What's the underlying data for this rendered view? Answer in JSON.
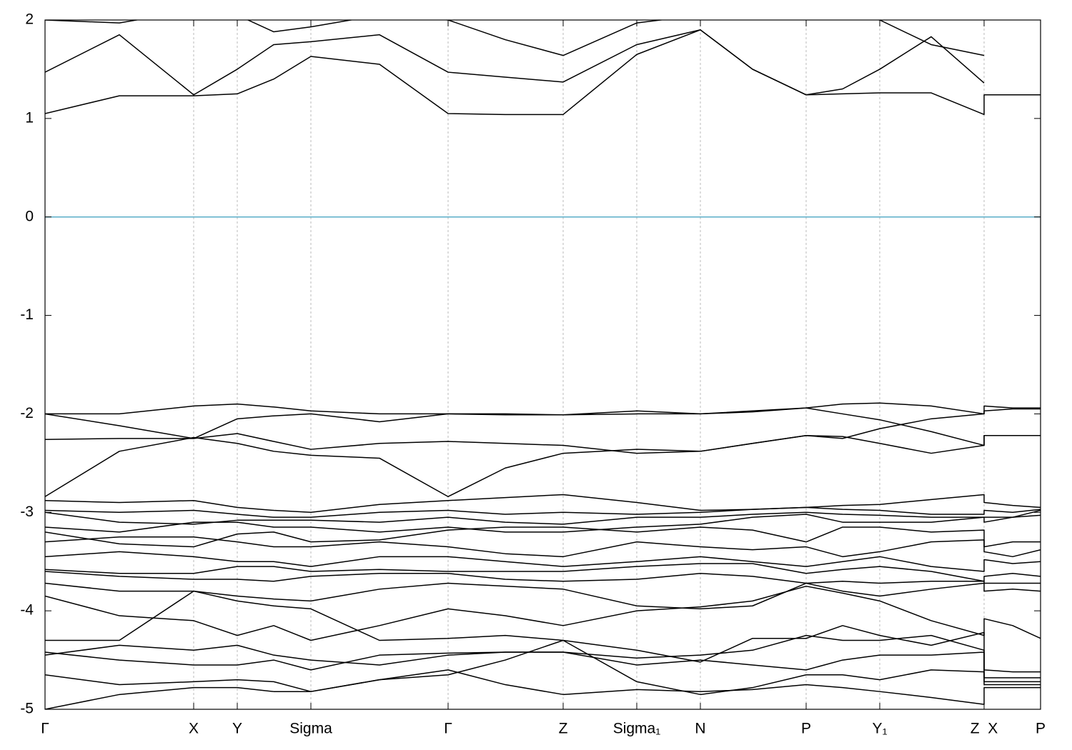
{
  "chart_data": {
    "type": "line",
    "x": [
      0,
      0.52,
      1.04,
      1.345,
      1.6,
      1.86,
      2.34,
      2.82,
      3.22,
      3.625,
      4.14,
      4.585,
      4.95,
      5.325,
      5.58,
      5.84,
      6.2,
      6.57,
      6.57,
      6.77,
      6.965
    ],
    "xlim": [
      0,
      6.965
    ],
    "xticks": [
      {
        "value": 0,
        "label": "Γ"
      },
      {
        "value": 1.04,
        "label": "X"
      },
      {
        "value": 1.345,
        "label": "Y"
      },
      {
        "value": 1.86,
        "label": "Sigma"
      },
      {
        "value": 2.82,
        "label": "Γ"
      },
      {
        "value": 3.625,
        "label": "Z"
      },
      {
        "value": 4.14,
        "label": "Sigma₁"
      },
      {
        "value": 4.585,
        "label": "N"
      },
      {
        "value": 5.325,
        "label": "P"
      },
      {
        "value": 5.84,
        "label": "Y₁"
      },
      {
        "value": 6.57,
        "label": "Z  X"
      },
      {
        "value": 6.965,
        "label": "P"
      }
    ],
    "ylim": [
      -5,
      2
    ],
    "yticks": [
      -5,
      -4,
      -3,
      -2,
      -1,
      0,
      1,
      2
    ],
    "grid": true,
    "color": "#000000",
    "hlines": [
      {
        "value": 0,
        "color": "#5aaec8"
      }
    ],
    "series": [
      {
        "values": [
          1.05,
          1.23,
          1.23,
          1.25,
          1.4,
          1.63,
          1.55,
          1.05,
          1.04,
          1.04,
          1.65,
          1.9,
          1.5,
          1.24,
          1.25,
          1.26,
          1.26,
          1.04,
          1.24,
          1.24,
          1.24
        ]
      },
      {
        "values": [
          1.47,
          1.85,
          1.24,
          1.5,
          1.75,
          1.78,
          1.85,
          1.47,
          1.42,
          1.37,
          1.75,
          1.9,
          1.5,
          1.24,
          1.3,
          1.5,
          1.83,
          1.36,
          null,
          null,
          null
        ]
      },
      {
        "values": [
          2.0,
          1.97,
          2.1,
          2.05,
          1.88,
          1.93,
          2.05,
          2.0,
          1.8,
          1.64,
          1.97,
          2.05,
          2.1,
          2.1,
          2.05,
          2.0,
          1.75,
          1.64,
          null,
          null,
          null
        ]
      },
      {
        "values": [
          -2.0,
          -2.0,
          -1.92,
          -1.9,
          -1.93,
          -1.97,
          -2.0,
          -2.0,
          -2.01,
          -2.01,
          -1.97,
          -2.0,
          -1.97,
          -1.94,
          -1.9,
          -1.89,
          -1.92,
          -2.0,
          -1.92,
          -1.94,
          -1.94
        ]
      },
      {
        "values": [
          -2.0,
          -2.12,
          -2.25,
          -2.05,
          -2.02,
          -2.0,
          -2.08,
          -2.0,
          -2.0,
          -2.01,
          -2.0,
          -2.0,
          -1.98,
          -1.94,
          -2.0,
          -2.06,
          -2.18,
          -2.32,
          -2.22,
          -2.22,
          -2.22
        ]
      },
      {
        "values": [
          -2.26,
          -2.25,
          -2.25,
          -2.2,
          -2.28,
          -2.36,
          -2.3,
          -2.28,
          -2.3,
          -2.32,
          -2.4,
          -2.38,
          -2.3,
          -2.22,
          -2.23,
          -2.3,
          -2.4,
          -2.32,
          -2.22,
          -2.22,
          -2.22
        ]
      },
      {
        "values": [
          -2.84,
          -2.38,
          -2.24,
          -2.3,
          -2.38,
          -2.42,
          -2.45,
          -2.84,
          -2.55,
          -2.4,
          -2.36,
          -2.38,
          -2.3,
          -2.22,
          -2.25,
          -2.15,
          -2.05,
          -2.0,
          -1.97,
          -1.95,
          -1.95
        ]
      },
      {
        "values": [
          -2.88,
          -2.9,
          -2.88,
          -2.95,
          -2.98,
          -3.0,
          -2.92,
          -2.88,
          -2.85,
          -2.82,
          -2.9,
          -2.98,
          -2.97,
          -2.95,
          -2.93,
          -2.92,
          -2.87,
          -2.82,
          -2.9,
          -2.93,
          -2.95
        ]
      },
      {
        "values": [
          -2.98,
          -3.0,
          -2.98,
          -3.02,
          -3.05,
          -3.05,
          -3.0,
          -2.98,
          -3.02,
          -3.0,
          -3.02,
          -3.0,
          -2.97,
          -2.95,
          -2.97,
          -2.98,
          -3.02,
          -3.02,
          -2.98,
          -3.0,
          -2.97
        ]
      },
      {
        "values": [
          -3.0,
          -3.1,
          -3.12,
          -3.08,
          -3.08,
          -3.08,
          -3.1,
          -3.05,
          -3.1,
          -3.12,
          -3.05,
          -3.05,
          -3.02,
          -3.0,
          -3.02,
          -3.03,
          -3.05,
          -3.05,
          -3.05,
          -3.05,
          -3.03
        ]
      },
      {
        "values": [
          -3.15,
          -3.2,
          -3.1,
          -3.1,
          -3.15,
          -3.15,
          -3.2,
          -3.15,
          -3.2,
          -3.2,
          -3.15,
          -3.12,
          -3.05,
          -3.02,
          -3.1,
          -3.1,
          -3.1,
          -3.05,
          -3.1,
          -3.05,
          -2.98
        ]
      },
      {
        "values": [
          -3.2,
          -3.32,
          -3.35,
          -3.22,
          -3.2,
          -3.3,
          -3.28,
          -3.18,
          -3.15,
          -3.15,
          -3.2,
          -3.15,
          -3.18,
          -3.3,
          -3.15,
          -3.15,
          -3.2,
          -3.18,
          -3.35,
          -3.3,
          -3.3
        ]
      },
      {
        "values": [
          -3.3,
          -3.25,
          -3.25,
          -3.3,
          -3.35,
          -3.35,
          -3.3,
          -3.35,
          -3.42,
          -3.45,
          -3.3,
          -3.35,
          -3.38,
          -3.35,
          -3.45,
          -3.4,
          -3.3,
          -3.28,
          -3.4,
          -3.45,
          -3.38
        ]
      },
      {
        "values": [
          -3.45,
          -3.4,
          -3.45,
          -3.5,
          -3.5,
          -3.55,
          -3.45,
          -3.45,
          -3.5,
          -3.55,
          -3.5,
          -3.45,
          -3.5,
          -3.55,
          -3.5,
          -3.45,
          -3.55,
          -3.6,
          -3.48,
          -3.52,
          -3.5
        ]
      },
      {
        "values": [
          -3.58,
          -3.62,
          -3.62,
          -3.55,
          -3.55,
          -3.6,
          -3.58,
          -3.6,
          -3.6,
          -3.6,
          -3.55,
          -3.52,
          -3.52,
          -3.62,
          -3.58,
          -3.55,
          -3.6,
          -3.7,
          -3.65,
          -3.62,
          -3.65
        ]
      },
      {
        "values": [
          -3.6,
          -3.65,
          -3.68,
          -3.68,
          -3.7,
          -3.65,
          -3.62,
          -3.62,
          -3.68,
          -3.7,
          -3.68,
          -3.62,
          -3.65,
          -3.72,
          -3.7,
          -3.72,
          -3.7,
          -3.7,
          -3.72,
          -3.72,
          -3.72
        ]
      },
      {
        "values": [
          -3.72,
          -3.8,
          -3.8,
          -3.85,
          -3.88,
          -3.9,
          -3.78,
          -3.72,
          -3.75,
          -3.78,
          -3.95,
          -3.98,
          -3.95,
          -3.72,
          -3.8,
          -3.85,
          -3.78,
          -3.72,
          -3.8,
          -3.78,
          -3.8
        ]
      },
      {
        "values": [
          -3.85,
          -4.05,
          -4.1,
          -4.25,
          -4.15,
          -4.3,
          -4.15,
          -3.98,
          -4.05,
          -4.15,
          -4.0,
          -3.96,
          -3.9,
          -3.75,
          -3.82,
          -3.9,
          -4.1,
          -4.25,
          -4.08,
          -4.15,
          -4.28
        ]
      },
      {
        "values": [
          -4.3,
          -4.3,
          -3.8,
          -3.9,
          -3.95,
          -3.98,
          -4.3,
          -4.28,
          -4.25,
          -4.3,
          -4.4,
          -4.52,
          -4.28,
          -4.28,
          -4.15,
          -4.25,
          -4.35,
          -4.22,
          -4.6,
          -4.62,
          -4.62
        ]
      },
      {
        "values": [
          -4.45,
          -4.35,
          -4.4,
          -4.35,
          -4.45,
          -4.5,
          -4.55,
          -4.45,
          -4.42,
          -4.42,
          -4.48,
          -4.45,
          -4.4,
          -4.25,
          -4.3,
          -4.3,
          -4.25,
          -4.4,
          -4.68,
          -4.68,
          -4.68
        ]
      },
      {
        "values": [
          -4.42,
          -4.5,
          -4.55,
          -4.55,
          -4.5,
          -4.6,
          -4.45,
          -4.43,
          -4.42,
          -4.42,
          -4.55,
          -4.5,
          -4.55,
          -4.6,
          -4.5,
          -4.45,
          -4.45,
          -4.42,
          -4.75,
          -4.75,
          -4.75
        ]
      },
      {
        "values": [
          -4.65,
          -4.75,
          -4.72,
          -4.7,
          -4.72,
          -4.82,
          -4.7,
          -4.65,
          -4.5,
          -4.3,
          -4.72,
          -4.85,
          -4.78,
          -4.65,
          -4.65,
          -4.7,
          -4.6,
          -4.62,
          -4.72,
          -4.72,
          -4.72
        ]
      },
      {
        "values": [
          -5.0,
          -4.85,
          -4.78,
          -4.78,
          -4.82,
          -4.82,
          -4.7,
          -4.6,
          -4.75,
          -4.85,
          -4.8,
          -4.82,
          -4.8,
          -4.75,
          -4.78,
          -4.82,
          -4.88,
          -4.95,
          -4.78,
          -4.78,
          -4.78
        ]
      }
    ]
  }
}
